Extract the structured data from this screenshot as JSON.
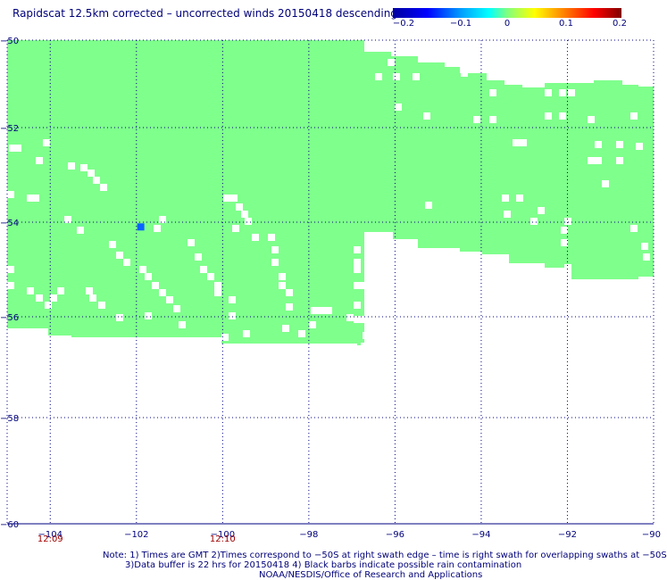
{
  "title": "Rapidscat 12.5km corrected – uncorrected winds 20150418 descending",
  "colorbar": {
    "ticks": [
      "−0.2",
      "−0.1",
      "0",
      "0.1",
      "0.2"
    ]
  },
  "map": {
    "lon_ticks": [
      "−104",
      "−102",
      "−100",
      "−98",
      "−96",
      "−94",
      "−92",
      "−90"
    ],
    "lat_ticks": [
      "−50",
      "−52",
      "−54",
      "−56",
      "−58",
      "−60"
    ],
    "time_labels": [
      "12:09",
      "12:10"
    ],
    "swath_color": "#7fff8c",
    "highlight_color": "#0a64ff",
    "highlight_cell": {
      "lon": -101.9,
      "lat": -54.1
    }
  },
  "notes": {
    "line1": "Note: 1) Times are GMT 2)Times correspond to −50S at right swath edge – time is right swath for overlapping swaths at −50S",
    "line2": "3)Data buffer is 22 hrs for 20150418 4) Black barbs indicate possible rain contamination",
    "line3": "NOAA/NESDIS/Office of Research and Applications"
  }
}
